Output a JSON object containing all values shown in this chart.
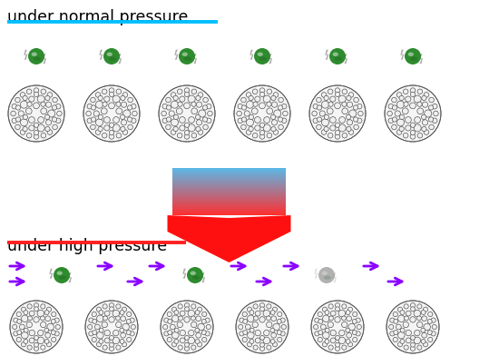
{
  "title_top": "under normal pressure",
  "title_bottom": "under high pressure",
  "title_color": "black",
  "line_top_color": "#00BFFF",
  "line_bottom_color": "#FF2020",
  "bg_color": "white",
  "purple_arrow_color": "#8B00FF",
  "cs_atom_color": "#2E8B2E",
  "cs_atom_color_faded": "#888888",
  "lightning_color": "#AAAAAA",
  "lightning_color_faded": "#CCCCCC",
  "gradient_top": "#5BB8E8",
  "gradient_bot": "#FF3030",
  "big_arrow_color": "#FF1010",
  "fig_w": 5.5,
  "fig_h": 3.92,
  "dpi": 100
}
